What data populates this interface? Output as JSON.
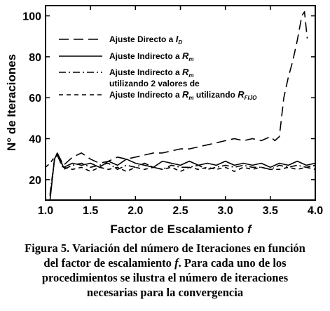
{
  "chart_data": {
    "type": "line",
    "title": "",
    "xlabel": "Factor de Escalamiento",
    "xlabel_var": "f",
    "ylabel": "N° de Iteraciones",
    "xlim": [
      1.0,
      4.0
    ],
    "ylim": [
      10,
      105
    ],
    "xticks": [
      "1.0",
      "1.5",
      "2.0",
      "2.5",
      "3.0",
      "3.5",
      "4.0"
    ],
    "yticks": [
      "20",
      "40",
      "60",
      "80",
      "100"
    ],
    "legend_position": "top-left",
    "series": [
      {
        "name": "Ajuste Directo a I_D",
        "legend_text": "Ajuste Directo a ",
        "legend_sym": "I",
        "legend_sub": "D",
        "legend_rest": "",
        "style": "longdash",
        "x": [
          1.05,
          1.1,
          1.13,
          1.2,
          1.3,
          1.4,
          1.5,
          1.6,
          1.7,
          1.8,
          1.9,
          2.0,
          2.1,
          2.2,
          2.3,
          2.4,
          2.5,
          2.6,
          2.7,
          2.8,
          2.9,
          3.0,
          3.1,
          3.2,
          3.3,
          3.4,
          3.5,
          3.55,
          3.6,
          3.65,
          3.7,
          3.75,
          3.8,
          3.85,
          3.88,
          3.91
        ],
        "y": [
          12,
          30,
          33,
          27,
          31,
          33,
          30,
          28,
          29,
          31,
          30,
          31,
          32,
          33,
          33,
          34,
          35,
          35,
          36,
          37,
          38,
          39,
          40,
          39,
          40,
          39,
          41,
          39,
          41,
          60,
          70,
          78,
          88,
          100,
          102,
          89
        ]
      },
      {
        "name": "Ajuste Indirecto a R_m",
        "legend_text": "Ajuste Indirecto a ",
        "legend_sym": "R",
        "legend_sub": "m",
        "legend_rest": "",
        "style": "solid",
        "x": [
          1.05,
          1.1,
          1.13,
          1.2,
          1.3,
          1.4,
          1.5,
          1.6,
          1.7,
          1.8,
          1.9,
          2.0,
          2.1,
          2.2,
          2.3,
          2.4,
          2.5,
          2.6,
          2.7,
          2.8,
          2.9,
          3.0,
          3.1,
          3.2,
          3.3,
          3.4,
          3.5,
          3.6,
          3.7,
          3.8,
          3.9,
          4.0
        ],
        "y": [
          10,
          30,
          33,
          26,
          28,
          27,
          28,
          26,
          29,
          27,
          30,
          28,
          27,
          26,
          29,
          28,
          27,
          29,
          27,
          28,
          27,
          29,
          27,
          28,
          27,
          28,
          26,
          28,
          27,
          29,
          27,
          28
        ]
      },
      {
        "name": "Ajuste Indirecto a R_m utilizando 2 valores de",
        "legend_text": "Ajuste Indirecto a ",
        "legend_sym": "R",
        "legend_sub": "m",
        "legend_rest": "",
        "legend_line2": "utilizando 2 valores de",
        "style": "dashdot",
        "x": [
          1.05,
          1.1,
          1.13,
          1.2,
          1.3,
          1.4,
          1.5,
          1.6,
          1.7,
          1.8,
          1.9,
          2.0,
          2.1,
          2.2,
          2.3,
          2.4,
          2.5,
          2.6,
          2.7,
          2.8,
          2.9,
          3.0,
          3.1,
          3.2,
          3.3,
          3.4,
          3.5,
          3.6,
          3.7,
          3.8,
          3.9,
          4.0
        ],
        "y": [
          13,
          30,
          32,
          25,
          27,
          28,
          26,
          27,
          28,
          25,
          27,
          26,
          28,
          26,
          25,
          27,
          26,
          26,
          27,
          25,
          26,
          27,
          26,
          27,
          26,
          26,
          25,
          27,
          26,
          27,
          26,
          27
        ]
      },
      {
        "name": "Ajuste Indirecto a R_m utilizando R_FIJO",
        "legend_text": "Ajuste Indirecto a ",
        "legend_sym": "R",
        "legend_sub": "m",
        "legend_rest": " utilizando ",
        "legend_sym2": "R",
        "legend_sub2": "FIJO",
        "style": "shortdash",
        "x": [
          1.0,
          1.05,
          1.1,
          1.13,
          1.2,
          1.3,
          1.4,
          1.5,
          1.6,
          1.7,
          1.8,
          1.9,
          2.0,
          2.1,
          2.2,
          2.3,
          2.4,
          2.5,
          2.6,
          2.7,
          2.8,
          2.9,
          3.0,
          3.1,
          3.2,
          3.3,
          3.4,
          3.5,
          3.6,
          3.7,
          3.8,
          3.9,
          4.0
        ],
        "y": [
          26,
          28,
          31,
          32,
          26,
          25,
          26,
          24,
          26,
          25,
          26,
          24,
          26,
          25,
          26,
          25,
          26,
          24,
          26,
          25,
          26,
          25,
          26,
          24,
          26,
          25,
          26,
          25,
          25,
          26,
          25,
          26,
          25
        ]
      }
    ]
  },
  "caption": {
    "line1": "Figura 5. Variación del número de Iteraciones en función",
    "line2_a": "del factor de escalamiento ",
    "line2_var": "f",
    "line2_b": ". Para cada uno de los",
    "line3": "procedimientos se ilustra el número de iteraciones",
    "line4": "necesarias para la convergencia"
  }
}
